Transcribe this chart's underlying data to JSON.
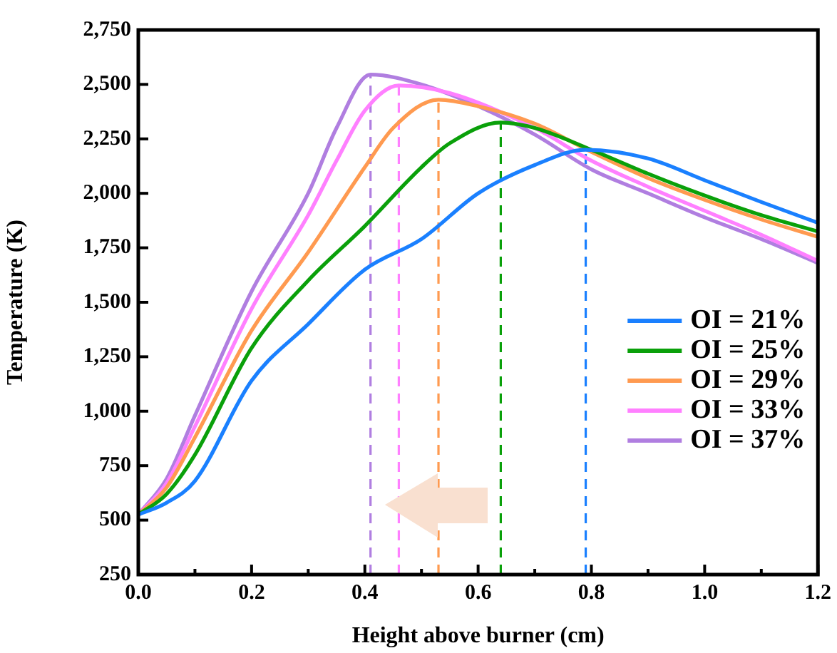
{
  "chart_data": {
    "type": "line",
    "xlabel": "Height above burner (cm)",
    "ylabel": "Temperature (K)",
    "xlim": [
      0,
      1.2
    ],
    "ylim": [
      250,
      2750
    ],
    "xticks": [
      {
        "value": 0,
        "label": "0.0"
      },
      {
        "value": 0.2,
        "label": "0.2"
      },
      {
        "value": 0.4,
        "label": "0.4"
      },
      {
        "value": 0.6,
        "label": "0.6"
      },
      {
        "value": 0.8,
        "label": "0.8"
      },
      {
        "value": 1.0,
        "label": "1.0"
      },
      {
        "value": 1.2,
        "label": "1.2"
      }
    ],
    "yticks": [
      250,
      500,
      750,
      {
        "value": 1000,
        "label": "1,000"
      },
      {
        "value": 1250,
        "label": "1,250"
      },
      {
        "value": 1500,
        "label": "1,500"
      },
      {
        "value": 1750,
        "label": "1,750"
      },
      {
        "value": 2000,
        "label": "2,000"
      },
      {
        "value": 2250,
        "label": "2,250"
      },
      {
        "value": 2500,
        "label": "2,500"
      },
      {
        "value": 2750,
        "label": "2,750"
      }
    ],
    "grid": false,
    "legend": "right",
    "marker": "none",
    "series": [
      {
        "name": "OI = 21%",
        "color": "#1a80ff",
        "x": [
          0,
          0.05,
          0.1,
          0.2,
          0.3,
          0.4,
          0.5,
          0.6,
          0.7,
          0.79,
          0.9,
          1.0,
          1.1,
          1.2
        ],
        "values": [
          525,
          580,
          680,
          1140,
          1400,
          1650,
          1790,
          2000,
          2130,
          2200,
          2160,
          2060,
          1960,
          1865
        ]
      },
      {
        "name": "OI = 25%",
        "color": "#0aa00a",
        "x": [
          0,
          0.05,
          0.1,
          0.2,
          0.3,
          0.4,
          0.5,
          0.55,
          0.64,
          0.7,
          0.8,
          0.9,
          1.0,
          1.1,
          1.2
        ],
        "values": [
          525,
          620,
          800,
          1290,
          1600,
          1850,
          2120,
          2230,
          2325,
          2300,
          2200,
          2090,
          1990,
          1900,
          1825
        ]
      },
      {
        "name": "OI = 29%",
        "color": "#ff9a50",
        "x": [
          0,
          0.05,
          0.1,
          0.2,
          0.3,
          0.4,
          0.45,
          0.53,
          0.6,
          0.7,
          0.8,
          0.9,
          1.0,
          1.1,
          1.2
        ],
        "values": [
          525,
          650,
          880,
          1370,
          1730,
          2120,
          2300,
          2430,
          2400,
          2320,
          2190,
          2070,
          1970,
          1880,
          1800
        ]
      },
      {
        "name": "OI = 33%",
        "color": "#ff80ff",
        "x": [
          0,
          0.05,
          0.1,
          0.2,
          0.3,
          0.35,
          0.4,
          0.46,
          0.55,
          0.7,
          0.8,
          0.9,
          1.0,
          1.1,
          1.2
        ],
        "values": [
          525,
          670,
          930,
          1470,
          1900,
          2150,
          2380,
          2495,
          2460,
          2300,
          2150,
          2030,
          1920,
          1810,
          1690
        ]
      },
      {
        "name": "OI = 37%",
        "color": "#b07ee0",
        "x": [
          0,
          0.05,
          0.1,
          0.2,
          0.3,
          0.35,
          0.41,
          0.5,
          0.6,
          0.7,
          0.8,
          0.9,
          1.0,
          1.1,
          1.2
        ],
        "values": [
          525,
          690,
          980,
          1550,
          2000,
          2300,
          2545,
          2500,
          2400,
          2270,
          2110,
          2000,
          1890,
          1790,
          1680
        ]
      },
      {
        "color": "#1a80ff",
        "line_style": "dashed",
        "x": [
          0.79,
          0.79
        ],
        "values": [
          250,
          2200
        ]
      },
      {
        "color": "#0aa00a",
        "line_style": "dashed",
        "x": [
          0.64,
          0.64
        ],
        "values": [
          250,
          2325
        ]
      },
      {
        "color": "#ff9a50",
        "line_style": "dashed",
        "x": [
          0.53,
          0.53
        ],
        "values": [
          250,
          2430
        ]
      },
      {
        "color": "#ff80ff",
        "line_style": "dashed",
        "x": [
          0.46,
          0.46
        ],
        "values": [
          250,
          2495
        ]
      },
      {
        "color": "#b07ee0",
        "line_style": "dashed",
        "x": [
          0.41,
          0.41
        ],
        "values": [
          250,
          2545
        ]
      }
    ]
  }
}
